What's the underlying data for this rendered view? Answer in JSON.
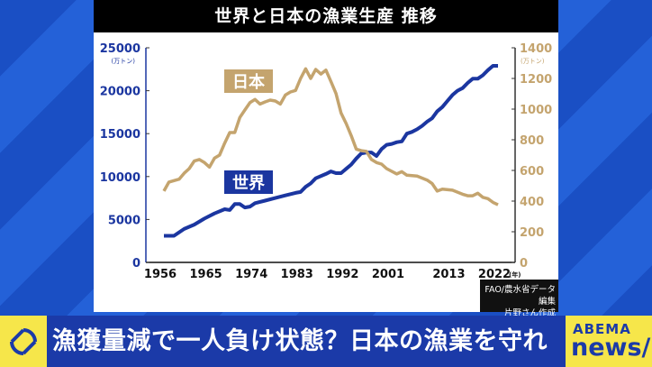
{
  "title": "世界と日本の漁業生産 推移",
  "source_lines": [
    "FAO/農水省データ編集",
    "片野さん作成"
  ],
  "banner": {
    "headline": "漁獲量減で一人負け状態？日本の漁業を守れ",
    "logo_top": "ABEMA",
    "logo_bottom": "news/",
    "icon": "refresh-cycle-icon"
  },
  "colors": {
    "world": "#1b36a0",
    "japan": "#c4a46e",
    "banner": "#1b3aa8",
    "accent": "#f6e64a"
  },
  "chart_data": {
    "type": "line",
    "title": "世界と日本の漁業生産 推移",
    "xlabel": "(年)",
    "ylabel_left": "(万トン)",
    "ylabel_right": "(万トン)",
    "x_ticks": [
      "1956",
      "1965",
      "1974",
      "1983",
      "1992",
      "2001",
      "2013",
      "2022"
    ],
    "y_left_ticks": [
      "0",
      "5000",
      "10000",
      "15000",
      "20000",
      "25000"
    ],
    "y_right_ticks": [
      "0",
      "200",
      "400",
      "600",
      "800",
      "1000",
      "1200",
      "1400"
    ],
    "xlim": [
      1956,
      2022
    ],
    "ylim_left": [
      0,
      25000
    ],
    "ylim_right": [
      0,
      1400
    ],
    "grid": false,
    "series": [
      {
        "name": "世界",
        "axis": "left",
        "x": [
          1956,
          1958,
          1960,
          1962,
          1964,
          1966,
          1968,
          1969,
          1970,
          1971,
          1972,
          1973,
          1974,
          1976,
          1978,
          1980,
          1982,
          1983,
          1984,
          1985,
          1986,
          1988,
          1989,
          1990,
          1991,
          1992,
          1993,
          1994,
          1995,
          1996,
          1997,
          1998,
          1999,
          2000,
          2001,
          2002,
          2003,
          2004,
          2005,
          2006,
          2007,
          2008,
          2009,
          2010,
          2011,
          2012,
          2013,
          2014,
          2015,
          2016,
          2017,
          2018,
          2019,
          2020,
          2021,
          2022
        ],
        "values": [
          3100,
          3100,
          3900,
          4400,
          5100,
          5700,
          6200,
          6100,
          6800,
          6800,
          6400,
          6500,
          6900,
          7200,
          7500,
          7800,
          8100,
          8200,
          8800,
          9200,
          9800,
          10300,
          10600,
          10400,
          10400,
          10900,
          11400,
          12100,
          12700,
          12800,
          12800,
          12400,
          13200,
          13700,
          13800,
          14000,
          14100,
          15000,
          15200,
          15500,
          15900,
          16400,
          16800,
          17600,
          18100,
          18800,
          19500,
          20000,
          20300,
          20900,
          21400,
          21400,
          21800,
          22400,
          22900,
          22900
        ]
      },
      {
        "name": "日本",
        "axis": "right",
        "x": [
          1956,
          1957,
          1959,
          1960,
          1961,
          1962,
          1963,
          1964,
          1965,
          1966,
          1967,
          1968,
          1969,
          1970,
          1971,
          1972,
          1973,
          1974,
          1975,
          1976,
          1977,
          1978,
          1979,
          1980,
          1981,
          1982,
          1983,
          1984,
          1985,
          1986,
          1987,
          1988,
          1989,
          1990,
          1991,
          1992,
          1993,
          1994,
          1995,
          1996,
          1997,
          1998,
          1999,
          2000,
          2002,
          2003,
          2004,
          2006,
          2008,
          2009,
          2010,
          2011,
          2013,
          2015,
          2016,
          2017,
          2018,
          2019,
          2020,
          2021,
          2022
        ],
        "values": [
          465,
          524,
          543,
          582,
          612,
          661,
          671,
          651,
          622,
          680,
          700,
          778,
          847,
          847,
          945,
          994,
          1043,
          1063,
          1033,
          1047,
          1059,
          1053,
          1033,
          1092,
          1112,
          1122,
          1200,
          1263,
          1200,
          1259,
          1229,
          1255,
          1180,
          1102,
          975,
          906,
          827,
          739,
          729,
          725,
          671,
          651,
          641,
          612,
          577,
          592,
          569,
          563,
          537,
          514,
          465,
          478,
          471,
          445,
          435,
          435,
          451,
          425,
          416,
          392,
          376
        ]
      }
    ]
  }
}
